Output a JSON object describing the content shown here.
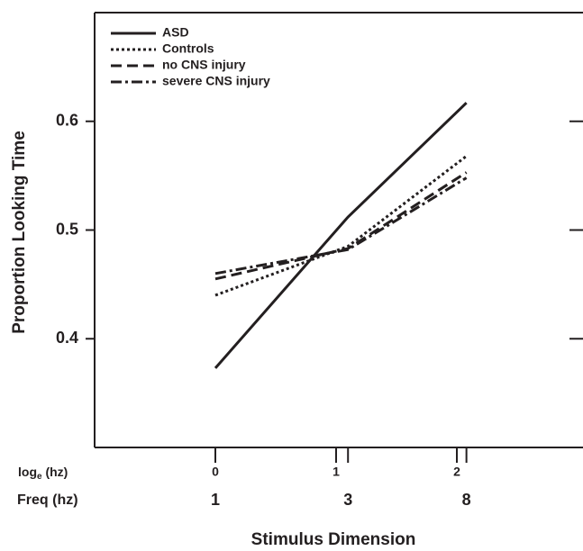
{
  "chart_data": {
    "type": "line",
    "y_label": "Proportion Looking Time",
    "x_label": "Stimulus Dimension",
    "log_row_label": {
      "base": "log",
      "sub": "e",
      "rest": " (hz)"
    },
    "freq_row_label": "Freq (hz)",
    "x": [
      0,
      1.0986,
      2.0794
    ],
    "series": [
      {
        "name": "ASD",
        "color": "#231f20",
        "dash": "none",
        "values": [
          0.373,
          0.512,
          0.617
        ]
      },
      {
        "name": "Controls",
        "color": "#231f20",
        "dash": "3 3",
        "values": [
          0.44,
          0.485,
          0.568
        ]
      },
      {
        "name": "no CNS injury",
        "color": "#231f20",
        "dash": "12 6",
        "values": [
          0.455,
          0.483,
          0.553
        ]
      },
      {
        "name": "severe CNS injury",
        "color": "#231f20",
        "dash": "12 4 3 4",
        "values": [
          0.46,
          0.482,
          0.548
        ]
      }
    ],
    "xlim": [
      -1,
      3
    ],
    "xticks": [
      0,
      1,
      2
    ],
    "freq_ticks": [
      {
        "value": 0,
        "label": "1"
      },
      {
        "value": 1.0986,
        "label": "3"
      },
      {
        "value": 2.0794,
        "label": "8"
      }
    ],
    "ylim": [
      0.3,
      0.7
    ],
    "yticks": [
      0.4,
      0.5,
      0.6
    ],
    "legend": "top-left"
  }
}
